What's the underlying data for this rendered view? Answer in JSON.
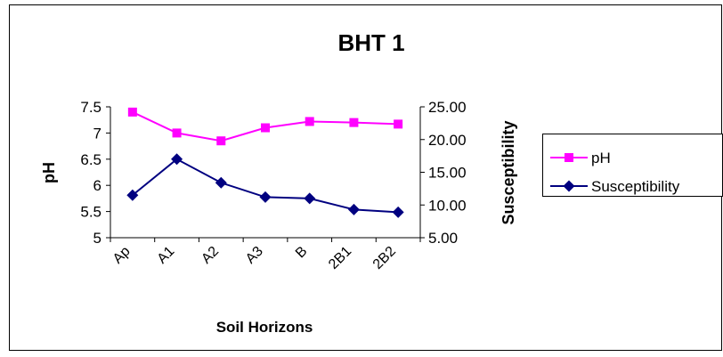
{
  "chart_data": {
    "type": "line",
    "title": "BHT 1",
    "xlabel": "Soil Horizons",
    "ylabel_left": "pH",
    "ylabel_right": "Susceptibility",
    "categories": [
      "Ap",
      "A1",
      "A2",
      "A3",
      "B",
      "2B1",
      "2B2"
    ],
    "y_left": {
      "min": 5,
      "max": 7.5,
      "ticks": [
        "5",
        "5.5",
        "6",
        "6.5",
        "7",
        "7.5"
      ]
    },
    "y_right": {
      "min": 5,
      "max": 25,
      "ticks": [
        "5.00",
        "10.00",
        "15.00",
        "20.00",
        "25.00"
      ]
    },
    "series": [
      {
        "name": "pH",
        "axis": "left",
        "marker": "square",
        "color": "#ff00ff",
        "values": [
          7.4,
          7.0,
          6.85,
          7.1,
          7.22,
          7.2,
          7.17
        ]
      },
      {
        "name": "Susceptibility",
        "axis": "right",
        "marker": "diamond",
        "color": "#000080",
        "values": [
          11.5,
          17.0,
          13.4,
          11.2,
          11.0,
          9.3,
          8.9
        ]
      }
    ],
    "legend_position": "right",
    "grid": false
  }
}
